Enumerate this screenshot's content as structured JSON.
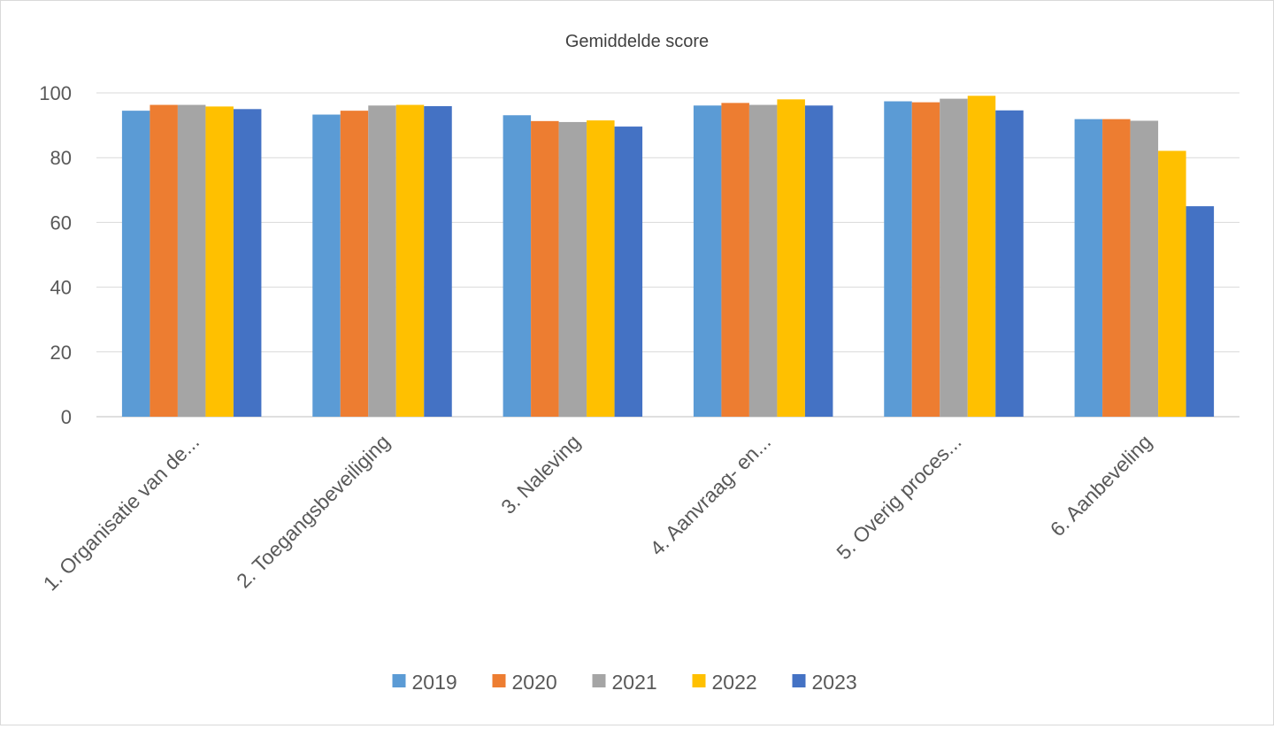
{
  "chart_data": {
    "type": "bar",
    "title": "Gemiddelde score",
    "xlabel": "",
    "ylabel": "",
    "ylim": [
      0,
      100
    ],
    "yticks": [
      0,
      20,
      40,
      60,
      80,
      100
    ],
    "grid": true,
    "legend_position": "bottom",
    "categories": [
      "1. Organisatie van de...",
      "2. Toegangsbeveiliging",
      "3. Naleving",
      "4. Aanvraag- en...",
      "5. Overig proces...",
      "6. Aanbeveling"
    ],
    "series": [
      {
        "name": "2019",
        "color": "#5b9bd5",
        "values": [
          94.5,
          93.3,
          93.1,
          96.1,
          97.4,
          91.9
        ]
      },
      {
        "name": "2020",
        "color": "#ed7d31",
        "values": [
          96.3,
          94.5,
          91.3,
          96.9,
          97.1,
          91.9
        ]
      },
      {
        "name": "2021",
        "color": "#a5a5a5",
        "values": [
          96.3,
          96.1,
          91.0,
          96.3,
          98.2,
          91.4
        ]
      },
      {
        "name": "2022",
        "color": "#ffc000",
        "values": [
          95.8,
          96.3,
          91.5,
          98.0,
          99.1,
          82.1
        ]
      },
      {
        "name": "2023",
        "color": "#4472c4",
        "values": [
          95.0,
          95.9,
          89.6,
          96.1,
          94.6,
          65.0
        ]
      }
    ]
  }
}
